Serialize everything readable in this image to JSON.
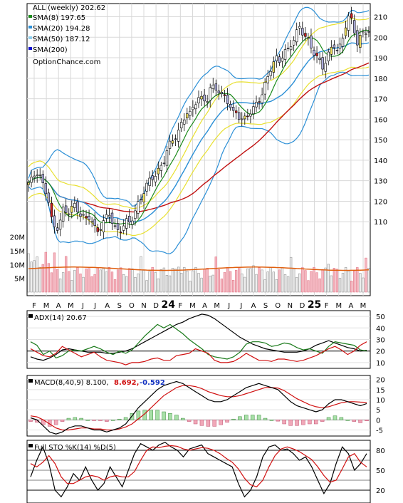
{
  "chart_data": [
    {
      "type": "candlestick",
      "title": "ALL (weekly) 202.62",
      "watermark": "OptionChance.com",
      "legend": [
        {
          "label": "SMA(8) 197.65",
          "color": "#1a8a1a"
        },
        {
          "label": "SMA(20) 194.28",
          "color": "#2b8fd6"
        },
        {
          "label": "SMA(50) 187.12",
          "color": "#8fd0f0"
        },
        {
          "label": "SMA(200)",
          "color": "#1010d0"
        }
      ],
      "price_ticks": [
        110,
        120,
        130,
        140,
        150,
        160,
        170,
        180,
        190,
        200,
        210
      ],
      "price_ylim": [
        100,
        214
      ],
      "volume_ticks": [
        "5M",
        "10M",
        "15M",
        "20M"
      ],
      "x_labels": [
        "F",
        "M",
        "A",
        "M",
        "J",
        "J",
        "A",
        "S",
        "O",
        "N",
        "D",
        "24",
        "F",
        "M",
        "A",
        "M",
        "J",
        "J",
        "A",
        "S",
        "O",
        "N",
        "D",
        "25",
        "F",
        "M",
        "A",
        "M"
      ],
      "weeks": 119,
      "close": [
        128,
        130,
        136,
        133,
        126,
        122,
        110,
        106,
        111,
        116,
        113,
        116,
        118,
        116,
        113,
        110,
        112,
        107,
        106,
        110,
        111,
        113,
        108,
        106,
        107,
        110,
        108,
        112,
        118,
        122,
        126,
        128,
        131,
        134,
        137,
        140,
        145,
        148,
        152,
        156,
        160,
        163,
        161,
        168,
        172,
        170,
        168,
        174,
        175,
        176,
        172,
        170,
        166,
        162,
        164,
        161,
        160,
        162,
        164,
        168,
        172,
        176,
        180,
        186,
        190,
        189,
        194,
        192,
        196,
        201,
        206,
        203,
        199,
        194,
        192,
        190,
        186,
        189,
        192,
        196,
        194,
        198,
        206,
        210,
        204,
        198,
        202,
        203,
        202.6
      ],
      "sma8_last": 197.65,
      "sma20_last": 194.28,
      "sma50_last": 187.12
    },
    {
      "type": "line",
      "title": "ADX(14) 20.67",
      "yticks": [
        10,
        20,
        30,
        40,
        50
      ],
      "ylim": [
        5,
        55
      ],
      "series": [
        {
          "name": "ADX(14)",
          "color": "#000000",
          "values": [
            15,
            13,
            12,
            14,
            17,
            21,
            22,
            21,
            20,
            19,
            19,
            19,
            18,
            18,
            19,
            20,
            22,
            25,
            28,
            31,
            34,
            37,
            40,
            43,
            45,
            48,
            50,
            52,
            51,
            48,
            44,
            40,
            36,
            32,
            29,
            26,
            24,
            22,
            21,
            20,
            19,
            19,
            19,
            20,
            22,
            25,
            27,
            29,
            27,
            25,
            23,
            22,
            20,
            20.67
          ]
        },
        {
          "name": "+DI",
          "color": "#1a7a1a",
          "values": [
            28,
            25,
            17,
            20,
            14,
            16,
            20,
            21,
            20,
            22,
            24,
            22,
            19,
            17,
            20,
            18,
            21,
            27,
            33,
            38,
            43,
            40,
            43,
            39,
            35,
            30,
            26,
            22,
            17,
            15,
            14,
            13,
            15,
            19,
            26,
            28,
            28,
            27,
            24,
            25,
            27,
            26,
            23,
            21,
            22,
            20,
            18,
            24,
            28,
            27,
            26,
            25,
            21,
            20
          ]
        },
        {
          "name": "-DI",
          "color": "#d01010",
          "values": [
            22,
            19,
            16,
            15,
            18,
            24,
            21,
            18,
            15,
            17,
            19,
            15,
            12,
            11,
            10,
            8,
            10,
            10,
            11,
            13,
            14,
            12,
            12,
            16,
            17,
            18,
            22,
            20,
            18,
            12,
            10,
            10,
            11,
            14,
            18,
            15,
            12,
            12,
            11,
            13,
            13,
            12,
            11,
            12,
            14,
            16,
            19,
            22,
            24,
            21,
            17,
            20,
            25,
            28
          ]
        }
      ]
    },
    {
      "type": "line",
      "title": "MACD(8,40,9) 8.100,",
      "macd_value": "8.692,",
      "signal_value": "-0.592",
      "yticks": [
        -5,
        0,
        5,
        10,
        15,
        20
      ],
      "ylim": [
        -8,
        22
      ],
      "series": [
        {
          "name": "MACD",
          "color": "#000000",
          "values": [
            1,
            0,
            -3,
            -6,
            -7,
            -6,
            -4,
            -3,
            -3,
            -4,
            -5,
            -5,
            -6,
            -5,
            -4,
            -2,
            2,
            6,
            9,
            12,
            15,
            17,
            18,
            19,
            18,
            16,
            14,
            12,
            10,
            9,
            9,
            10,
            12,
            14,
            16,
            17,
            18,
            17,
            16,
            15,
            12,
            9,
            7,
            6,
            5,
            4,
            5,
            8,
            10,
            10,
            9,
            8,
            7,
            8.1
          ]
        },
        {
          "name": "Signal",
          "color": "#d01010",
          "values": [
            2,
            1.5,
            0,
            -2,
            -4,
            -5,
            -5,
            -4.5,
            -4,
            -4,
            -4.5,
            -4.5,
            -5,
            -5,
            -4.5,
            -3.5,
            -2,
            0.5,
            3,
            6,
            9,
            12,
            14,
            16,
            17,
            17,
            16.5,
            15.5,
            14,
            13,
            12,
            11.5,
            11.5,
            12,
            13,
            14,
            15,
            16,
            16,
            15.8,
            14.5,
            12.5,
            10.5,
            9,
            7.5,
            6.5,
            6,
            6.5,
            7.5,
            8.5,
            9,
            9,
            8.8,
            8.692
          ]
        }
      ]
    },
    {
      "type": "line",
      "title": "Full STO %K(14) %D(5)",
      "yticks": [
        20,
        50,
        80
      ],
      "ylim": [
        5,
        95
      ],
      "series": [
        {
          "name": "%K",
          "color": "#000000",
          "values": [
            40,
            65,
            85,
            60,
            20,
            10,
            25,
            45,
            35,
            55,
            35,
            20,
            30,
            55,
            40,
            25,
            50,
            75,
            90,
            85,
            80,
            88,
            92,
            85,
            80,
            70,
            82,
            85,
            88,
            75,
            70,
            65,
            60,
            55,
            30,
            10,
            20,
            40,
            70,
            85,
            88,
            80,
            82,
            75,
            65,
            70,
            55,
            35,
            15,
            30,
            60,
            85,
            75,
            50,
            60,
            75
          ]
        },
        {
          "name": "%D",
          "color": "#d01010",
          "values": [
            60,
            55,
            62,
            72,
            60,
            40,
            30,
            30,
            35,
            40,
            42,
            40,
            35,
            40,
            42,
            40,
            40,
            48,
            65,
            80,
            85,
            84,
            86,
            87,
            86,
            82,
            80,
            82,
            84,
            83,
            80,
            75,
            68,
            62,
            52,
            38,
            28,
            25,
            35,
            55,
            72,
            82,
            85,
            82,
            78,
            72,
            66,
            55,
            42,
            32,
            35,
            52,
            70,
            75,
            62,
            55
          ]
        }
      ]
    }
  ]
}
